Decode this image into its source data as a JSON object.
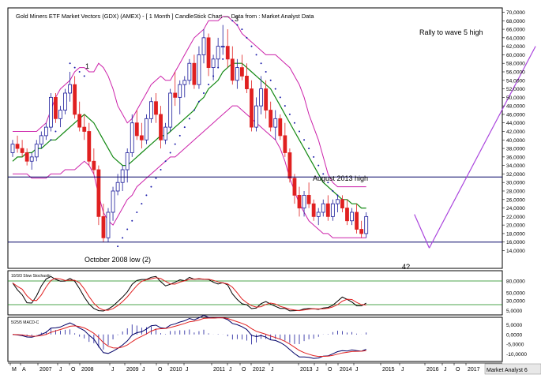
{
  "chart_data": {
    "type": "candlestick",
    "title": "Gold Miners ETF Market Vectors (GDX) (AMEX) -  [ 1 Month ] CandleStick Chart — Data from : Market Analyst Data",
    "ylim": [
      14,
      70
    ],
    "y_ticks": [
      "70,0000",
      "68,0000",
      "66,0000",
      "64,0000",
      "62,0000",
      "60,0000",
      "58,0000",
      "56,0000",
      "54,0000",
      "52,0000",
      "50,0000",
      "48,0000",
      "46,0000",
      "44,0000",
      "42,0000",
      "40,0000",
      "38,0000",
      "36,0000",
      "34,0000",
      "32,0000",
      "30,0000",
      "28,0000",
      "26,0000",
      "24,0000",
      "22,0000",
      "20,0000",
      "18,0000",
      "16,0000",
      "14,0000"
    ],
    "x_ticks": [
      "M",
      "A",
      "2007",
      "J",
      "O",
      "2008",
      "J",
      "2009",
      "J",
      "O",
      "2010",
      "J",
      "2011",
      "J",
      "O",
      "2012",
      "J",
      "2013",
      "J",
      "O",
      "2014",
      "J",
      "2015",
      "J",
      "2016",
      "J",
      "O",
      "2017"
    ],
    "footer": "Market Analyst 6",
    "annotations": {
      "wave1": "1",
      "wave3": "3",
      "wave4": "4?",
      "rally": "Rally to wave 5 high",
      "aug2013": "August 2013 high",
      "oct2008": "October 2008 low (2)"
    },
    "horizontal_lines": [
      31.3,
      16.0
    ],
    "candles": [
      [
        37,
        40,
        36,
        39
      ],
      [
        39,
        41,
        37,
        38
      ],
      [
        38,
        40,
        36,
        37
      ],
      [
        37,
        38,
        34,
        35
      ],
      [
        35,
        37,
        33,
        36
      ],
      [
        36,
        40,
        35,
        39
      ],
      [
        39,
        42,
        38,
        41
      ],
      [
        41,
        44,
        40,
        43
      ],
      [
        43,
        51,
        42,
        50
      ],
      [
        50,
        51,
        44,
        45
      ],
      [
        45,
        48,
        43,
        47
      ],
      [
        47,
        52,
        46,
        51
      ],
      [
        51,
        56,
        49,
        53
      ],
      [
        53,
        55,
        45,
        46
      ],
      [
        46,
        49,
        42,
        43
      ],
      [
        43,
        46,
        40,
        42
      ],
      [
        42,
        44,
        34,
        35
      ],
      [
        35,
        38,
        32,
        33
      ],
      [
        33,
        34,
        20,
        22
      ],
      [
        22,
        25,
        16,
        17
      ],
      [
        17,
        24,
        16,
        23
      ],
      [
        23,
        29,
        21,
        28
      ],
      [
        28,
        32,
        27,
        30
      ],
      [
        30,
        34,
        28,
        33
      ],
      [
        33,
        38,
        30,
        37
      ],
      [
        37,
        46,
        36,
        44
      ],
      [
        44,
        47,
        40,
        41
      ],
      [
        41,
        44,
        38,
        40
      ],
      [
        40,
        46,
        39,
        45
      ],
      [
        45,
        50,
        44,
        49
      ],
      [
        49,
        51,
        44,
        46
      ],
      [
        46,
        48,
        38,
        40
      ],
      [
        40,
        44,
        39,
        43
      ],
      [
        43,
        52,
        42,
        51
      ],
      [
        51,
        56,
        48,
        50
      ],
      [
        50,
        54,
        46,
        53
      ],
      [
        53,
        55,
        50,
        54
      ],
      [
        54,
        59,
        53,
        58
      ],
      [
        58,
        60,
        52,
        53
      ],
      [
        53,
        62,
        52,
        60
      ],
      [
        60,
        66,
        58,
        64
      ],
      [
        64,
        65,
        55,
        57
      ],
      [
        57,
        60,
        54,
        59
      ],
      [
        59,
        64,
        57,
        62
      ],
      [
        62,
        67,
        60,
        62
      ],
      [
        62,
        66,
        57,
        59
      ],
      [
        59,
        62,
        53,
        54
      ],
      [
        54,
        59,
        52,
        57
      ],
      [
        57,
        60,
        54,
        55
      ],
      [
        55,
        58,
        51,
        52
      ],
      [
        52,
        54,
        42,
        43
      ],
      [
        43,
        50,
        42,
        48
      ],
      [
        48,
        55,
        46,
        52
      ],
      [
        52,
        54,
        45,
        47
      ],
      [
        47,
        49,
        42,
        43
      ],
      [
        43,
        47,
        40,
        45
      ],
      [
        45,
        46,
        40,
        41
      ],
      [
        41,
        44,
        36,
        37
      ],
      [
        37,
        38,
        30,
        31
      ],
      [
        31,
        32,
        25,
        27
      ],
      [
        27,
        29,
        22,
        24
      ],
      [
        24,
        28,
        22,
        27
      ],
      [
        27,
        30,
        24,
        25
      ],
      [
        25,
        26,
        21,
        22
      ],
      [
        22,
        24,
        20,
        23
      ],
      [
        23,
        26,
        22,
        25
      ],
      [
        25,
        27,
        21,
        22
      ],
      [
        22,
        26,
        21,
        25
      ],
      [
        25,
        27,
        23,
        26
      ],
      [
        26,
        27,
        23,
        24
      ],
      [
        24,
        26,
        20,
        21
      ],
      [
        21,
        24,
        20,
        23
      ],
      [
        23,
        25,
        18,
        19
      ],
      [
        19,
        21,
        17,
        18
      ],
      [
        18,
        23,
        17,
        22
      ]
    ],
    "sma": [
      35,
      36,
      36,
      37,
      37,
      38,
      38,
      39,
      40,
      40,
      41,
      42,
      43,
      44,
      45,
      46,
      45,
      44,
      42,
      40,
      38,
      36,
      35,
      34,
      34,
      35,
      36,
      37,
      38,
      39,
      40,
      41,
      41,
      42,
      43,
      44,
      45,
      46,
      47,
      49,
      50,
      52,
      53,
      54,
      56,
      57,
      58,
      58,
      58,
      57,
      56,
      55,
      54,
      53,
      52,
      50,
      48,
      46,
      44,
      42,
      40,
      38,
      36,
      34,
      32,
      30,
      29,
      28,
      27,
      26,
      26,
      25,
      25,
      24,
      24
    ],
    "bb_upper": [
      42,
      42,
      42,
      42,
      42,
      42,
      43,
      44,
      47,
      50,
      52,
      53,
      54,
      56,
      57,
      57,
      56,
      56,
      58,
      57,
      55,
      52,
      48,
      46,
      44,
      45,
      47,
      49,
      51,
      53,
      54,
      55,
      54,
      54,
      56,
      58,
      60,
      62,
      64,
      65,
      66,
      68,
      68,
      68,
      69,
      69,
      68,
      67,
      65,
      64,
      63,
      62,
      61,
      60,
      60,
      60,
      59,
      58,
      57,
      55,
      53,
      50,
      46,
      43,
      40,
      36,
      32,
      30,
      29,
      29,
      29,
      29,
      29,
      29,
      29
    ],
    "bb_lower": [
      32,
      32,
      32,
      32,
      31,
      31,
      31,
      31,
      32,
      32,
      32,
      33,
      33,
      33,
      34,
      35,
      34,
      32,
      27,
      23,
      21,
      20,
      22,
      24,
      26,
      27,
      29,
      30,
      31,
      32,
      33,
      34,
      35,
      36,
      36,
      37,
      38,
      39,
      40,
      41,
      42,
      43,
      44,
      45,
      46,
      47,
      48,
      48,
      47,
      46,
      45,
      44,
      43,
      42,
      41,
      40,
      38,
      35,
      31,
      28,
      25,
      23,
      21,
      20,
      19,
      18,
      18,
      17,
      17,
      17,
      17,
      17,
      17,
      17,
      17
    ],
    "sar": [
      null,
      null,
      null,
      null,
      null,
      null,
      null,
      null,
      40,
      42,
      null,
      null,
      58,
      57,
      56,
      55,
      null,
      null,
      null,
      null,
      null,
      null,
      15,
      17,
      19,
      21,
      23,
      25,
      27,
      29,
      31,
      33,
      35,
      37,
      39,
      41,
      43,
      45,
      47,
      49,
      51,
      53,
      55,
      57,
      59,
      61,
      68,
      67,
      66,
      64,
      62,
      60,
      58,
      56,
      54,
      52,
      50,
      48,
      46,
      44,
      42,
      40,
      38,
      36,
      34,
      32,
      30,
      28,
      27,
      26,
      null,
      null,
      null,
      null,
      null
    ],
    "projection": {
      "down": [
        [
          2015.05,
          22.5
        ],
        [
          2015.35,
          14.6
        ]
      ],
      "up": [
        [
          2015.35,
          14.6
        ],
        [
          2017.5,
          62.0
        ]
      ]
    },
    "stochastic": {
      "label": "10/3/3 Slow Stochastic",
      "y_ticks": [
        "80,0000",
        "50,0000",
        "30,0000",
        "5,0000"
      ],
      "levels": [
        80,
        20
      ]
    },
    "macd": {
      "label": "5/25/5 MACD-C",
      "y_ticks": [
        "5,0000",
        "0,0000",
        "-5,0000",
        "-10,0000"
      ]
    }
  },
  "colors": {
    "up": "#1a1a9a",
    "down": "#e02020",
    "sma": "#118811",
    "bands": "#cc22aa",
    "sar": "#1a1aaa",
    "projection": "#aa44dd",
    "hline": "#000066"
  }
}
